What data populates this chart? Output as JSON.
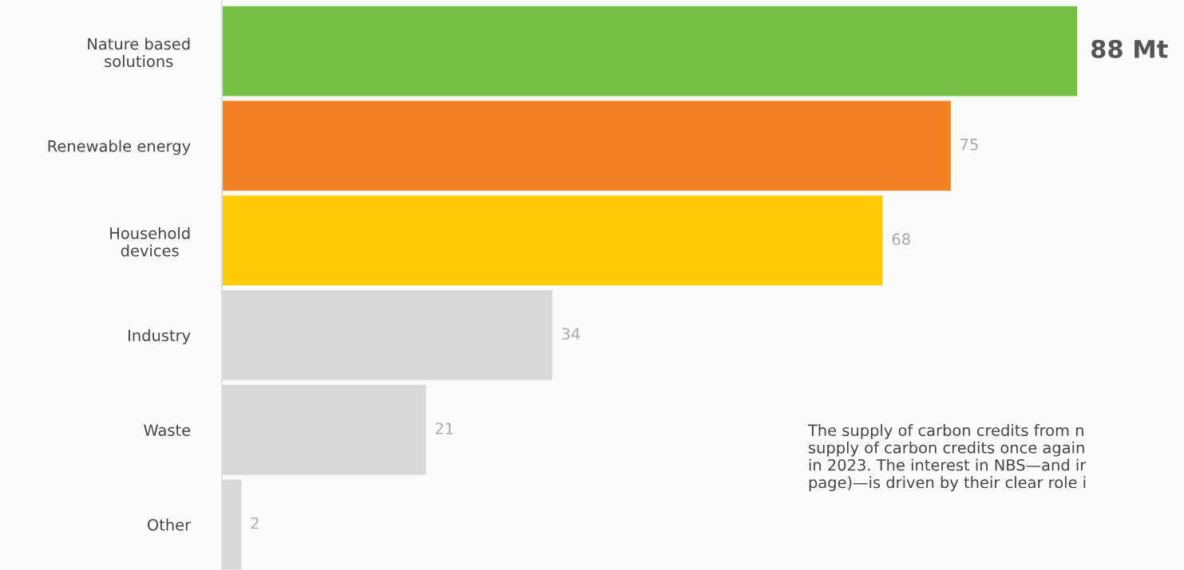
{
  "chart_data": {
    "type": "bar",
    "orientation": "horizontal",
    "categories": [
      "Nature based\nsolutions",
      "Renewable energy",
      "Household\ndevices",
      "Industry",
      "Waste",
      "Other"
    ],
    "values": [
      88,
      75,
      68,
      34,
      21,
      2
    ],
    "colors": [
      "#74c044",
      "#f28222",
      "#ffcc05",
      "#d9d9d9",
      "#d9d9d9",
      "#d9d9d9"
    ],
    "value_labels": [
      "88 Mt",
      "75",
      "68",
      "34",
      "21",
      "2"
    ],
    "grid": false,
    "legend": false,
    "annotations": [
      "The supply of carbon credits from n\nsupply of carbon credits once again\nin 2023. The interest in NBS—and ir\npage)—is driven by their clear role i"
    ]
  }
}
